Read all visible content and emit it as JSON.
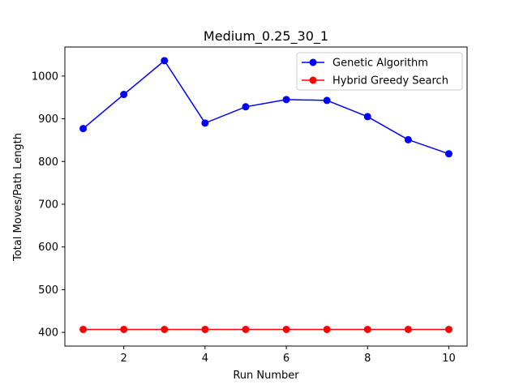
{
  "chart_data": {
    "type": "line",
    "title": "Medium_0.25_30_1",
    "xlabel": "Run Number",
    "ylabel": "Total Moves/Path Length",
    "x": [
      1,
      2,
      3,
      4,
      5,
      6,
      7,
      8,
      9,
      10
    ],
    "xticks": [
      2,
      4,
      6,
      8,
      10
    ],
    "yticks": [
      400,
      500,
      600,
      700,
      800,
      900,
      1000
    ],
    "xlim": [
      0.55,
      10.45
    ],
    "ylim": [
      368,
      1068
    ],
    "grid": false,
    "legend_position": "top-right",
    "series": [
      {
        "name": "Genetic Algorithm",
        "color": "#0000ff",
        "marker": "circle",
        "values": [
          877,
          957,
          1036,
          890,
          928,
          945,
          943,
          905,
          851,
          818
        ]
      },
      {
        "name": "Hybrid Greedy Search",
        "color": "#ff0000",
        "marker": "circle",
        "values": [
          407,
          407,
          407,
          407,
          407,
          407,
          407,
          407,
          407,
          407
        ]
      }
    ]
  }
}
